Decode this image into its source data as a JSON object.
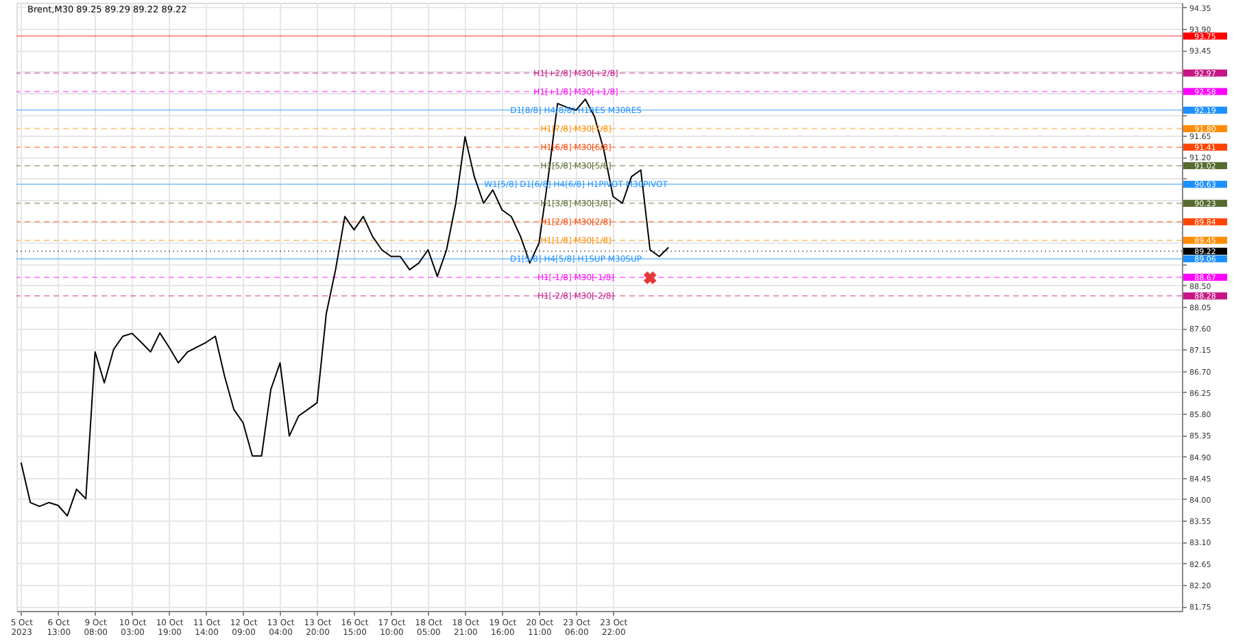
{
  "chart_data": {
    "type": "line",
    "title": "Brent,M30  89.25 89.29 89.22 89.22",
    "categories": [
      "5 Oct 2023",
      null,
      null,
      null,
      "6 Oct 13:00",
      null,
      null,
      null,
      "9 Oct 08:00",
      null,
      null,
      null,
      "10 Oct 03:00",
      null,
      null,
      null,
      "10 Oct 19:00",
      null,
      null,
      null,
      "11 Oct 14:00",
      null,
      null,
      null,
      "12 Oct 09:00",
      null,
      null,
      null,
      "13 Oct 04:00",
      null,
      null,
      null,
      "13 Oct 20:00",
      null,
      null,
      null,
      "16 Oct 15:00",
      null,
      null,
      null,
      "17 Oct 10:00",
      null,
      null,
      null,
      "18 Oct 05:00",
      null,
      null,
      null,
      "18 Oct 21:00",
      null,
      null,
      null,
      "19 Oct 16:00",
      null,
      null,
      null,
      "20 Oct 11:00",
      null,
      null,
      null,
      "23 Oct 06:00",
      null,
      null,
      null,
      "23 Oct 22:00",
      null,
      null,
      null,
      null,
      null,
      null,
      null,
      null,
      null,
      null,
      null,
      null,
      null,
      null,
      null,
      null,
      null,
      null,
      null,
      null,
      null,
      null,
      null,
      null,
      null,
      null,
      null,
      null,
      null,
      null,
      null,
      null,
      null,
      null,
      null,
      null,
      null,
      null,
      null,
      null,
      null,
      null,
      null,
      null,
      null,
      null,
      null,
      null,
      null,
      null,
      null,
      null,
      null,
      null,
      null,
      null,
      null,
      null,
      null,
      null,
      null
    ],
    "series": [
      {
        "color": "#000000",
        "values": [
          84.77,
          83.93,
          83.85,
          83.93,
          83.87,
          83.65,
          84.21,
          84.01,
          87.1,
          86.45,
          87.15,
          87.43,
          87.49,
          87.3,
          87.1,
          87.5,
          87.2,
          86.87,
          87.1,
          87.2,
          87.3,
          87.43,
          86.59,
          85.89,
          85.61,
          84.91,
          84.91,
          86.31,
          86.87,
          85.33,
          85.75,
          85.89,
          86.03,
          87.91,
          88.83,
          89.95,
          89.67,
          89.95,
          89.53,
          89.25,
          89.11,
          89.11,
          88.83,
          88.97,
          89.25,
          88.69,
          89.25,
          90.23,
          91.63,
          90.79,
          90.23,
          90.51,
          90.09,
          89.95,
          89.53,
          88.97,
          89.39,
          90.79,
          92.33,
          92.25,
          92.19,
          92.42,
          92.05,
          91.35,
          90.37,
          90.23,
          90.79,
          90.93,
          89.25,
          89.11,
          89.3,
          null,
          null,
          null,
          null,
          null,
          null,
          null,
          null,
          null,
          null,
          null,
          null,
          null,
          null,
          null,
          null,
          null,
          null,
          null,
          null,
          null,
          null,
          null,
          null,
          null,
          null,
          null,
          null,
          null,
          null,
          null,
          null,
          null,
          null,
          null,
          null,
          null,
          null,
          null,
          null,
          null,
          null,
          null,
          null,
          null,
          null,
          null,
          null,
          null,
          null,
          null,
          null,
          null,
          null,
          null
        ]
      },
      {
        "type": "scatter",
        "color": "#e8393a",
        "marker": "cross",
        "values": [
          null,
          null,
          null,
          null,
          null,
          null,
          null,
          null,
          null,
          null,
          null,
          null,
          null,
          null,
          null,
          null,
          null,
          null,
          null,
          null,
          null,
          null,
          null,
          null,
          null,
          null,
          null,
          null,
          null,
          null,
          null,
          null,
          null,
          null,
          null,
          null,
          null,
          null,
          null,
          null,
          null,
          null,
          null,
          null,
          null,
          null,
          null,
          null,
          null,
          null,
          null,
          null,
          null,
          null,
          null,
          null,
          null,
          null,
          null,
          null,
          null,
          null,
          null,
          null,
          null,
          null,
          null,
          null,
          88.66,
          null,
          null,
          null,
          null,
          null,
          null,
          null,
          null,
          null,
          null,
          null,
          null,
          null,
          null,
          null,
          null,
          null,
          null,
          null,
          null,
          null,
          null,
          null,
          null,
          null,
          null,
          null,
          null,
          null,
          null,
          null,
          null,
          null,
          null,
          null,
          null,
          null,
          null,
          null,
          null,
          null,
          null,
          null,
          null,
          null,
          null,
          null,
          null,
          null,
          null,
          null,
          null,
          null,
          null,
          null,
          null,
          null
        ]
      }
    ],
    "ylim": [
      81.65,
      94.45
    ],
    "yticks": [
      {
        "value": 94.35,
        "label": "94.35"
      },
      {
        "value": 93.9,
        "label": "93.90"
      },
      {
        "value": 93.45,
        "label": "93.45"
      },
      {
        "value": 93.0,
        "label": null
      },
      {
        "value": 92.55,
        "label": null
      },
      {
        "value": 92.1,
        "label": null
      },
      {
        "value": 91.65,
        "label": "91.65"
      },
      {
        "value": 91.2,
        "label": "91.20"
      },
      {
        "value": 90.75,
        "label": null
      },
      {
        "value": 90.3,
        "label": null
      },
      {
        "value": 89.85,
        "label": null
      },
      {
        "value": 89.4,
        "label": null
      },
      {
        "value": 88.95,
        "label": null
      },
      {
        "value": 88.5,
        "label": "88.50"
      },
      {
        "value": 88.05,
        "label": "88.05"
      },
      {
        "value": 87.6,
        "label": "87.60"
      },
      {
        "value": 87.15,
        "label": "87.15"
      },
      {
        "value": 86.7,
        "label": "86.70"
      },
      {
        "value": 86.25,
        "label": "86.25"
      },
      {
        "value": 85.8,
        "label": "85.80"
      },
      {
        "value": 85.35,
        "label": "85.35"
      },
      {
        "value": 84.9,
        "label": "84.90"
      },
      {
        "value": 84.45,
        "label": "84.45"
      },
      {
        "value": 84.0,
        "label": "84.00"
      },
      {
        "value": 83.55,
        "label": "83.55"
      },
      {
        "value": 83.1,
        "label": "83.10"
      },
      {
        "value": 82.65,
        "label": "82.65"
      },
      {
        "value": 82.2,
        "label": "82.20"
      },
      {
        "value": 81.75,
        "label": "81.75"
      }
    ],
    "ref_lines": [
      {
        "axis": "y",
        "value": 93.75,
        "color": "#ff0000",
        "line_style": "solid"
      },
      {
        "axis": "y",
        "value": 92.97,
        "label": "H1[+2/8] M30[+2/8]",
        "color": "#c71585",
        "line_style": "dashed"
      },
      {
        "axis": "y",
        "value": 92.58,
        "label": "H1[+1/8] M30[+1/8]",
        "color": "#ff00ff",
        "line_style": "dashed"
      },
      {
        "axis": "y",
        "value": 92.19,
        "label": "D1[8/8] H4[8/8] H1RES M30RES",
        "color": "#1e90ff",
        "line_style": "solid"
      },
      {
        "axis": "y",
        "value": 91.8,
        "label": "H1[7/8] M30[7/8]",
        "color": "#ff8c00",
        "line_style": "dashed"
      },
      {
        "axis": "y",
        "value": 91.41,
        "label": "H1[6/8] M30[6/8]",
        "color": "#ff4500",
        "line_style": "dashed"
      },
      {
        "axis": "y",
        "value": 91.02,
        "label": "H1[5/8] M30[5/8]",
        "color": "#556b2f",
        "line_style": "dashed"
      },
      {
        "axis": "y",
        "value": 90.63,
        "label": "W1[5/8] D1[6/8] H4[6/8] H1PIVOT M30PIVOT",
        "color": "#1e90ff",
        "line_style": "solid"
      },
      {
        "axis": "y",
        "value": 90.23,
        "label": "H1[3/8] M30[3/8]",
        "color": "#556b2f",
        "line_style": "dashed"
      },
      {
        "axis": "y",
        "value": 89.84,
        "label": "H1[2/8] M30[2/8]",
        "color": "#ff4500",
        "line_style": "dashed"
      },
      {
        "axis": "y",
        "value": 89.45,
        "label": "H1[1/8] M30[1/8]",
        "color": "#ff8c00",
        "line_style": "dashed"
      },
      {
        "axis": "y",
        "value": 89.22,
        "color": "#000000",
        "line_style": "dotted"
      },
      {
        "axis": "y",
        "value": 89.06,
        "label": "D1[5/8] H4[5/8] H1SUP M30SUP",
        "color": "#1e90ff",
        "line_style": "solid"
      },
      {
        "axis": "y",
        "value": 88.67,
        "label": "H1[-1/8] M30[-1/8]",
        "color": "#ff00ff",
        "line_style": "dashed"
      },
      {
        "axis": "y",
        "value": 88.28,
        "label": "H1[-2/8] M30[-2/8]",
        "color": "#c71585",
        "line_style": "dashed"
      }
    ],
    "annotations": [
      "93.75",
      "92.97",
      "92.58",
      "92.19",
      "91.80",
      "91.41",
      "91.02",
      "90.63",
      "90.23",
      "89.84",
      "89.45",
      "89.22",
      "89.06",
      "88.67",
      "88.28"
    ],
    "grid": true
  }
}
